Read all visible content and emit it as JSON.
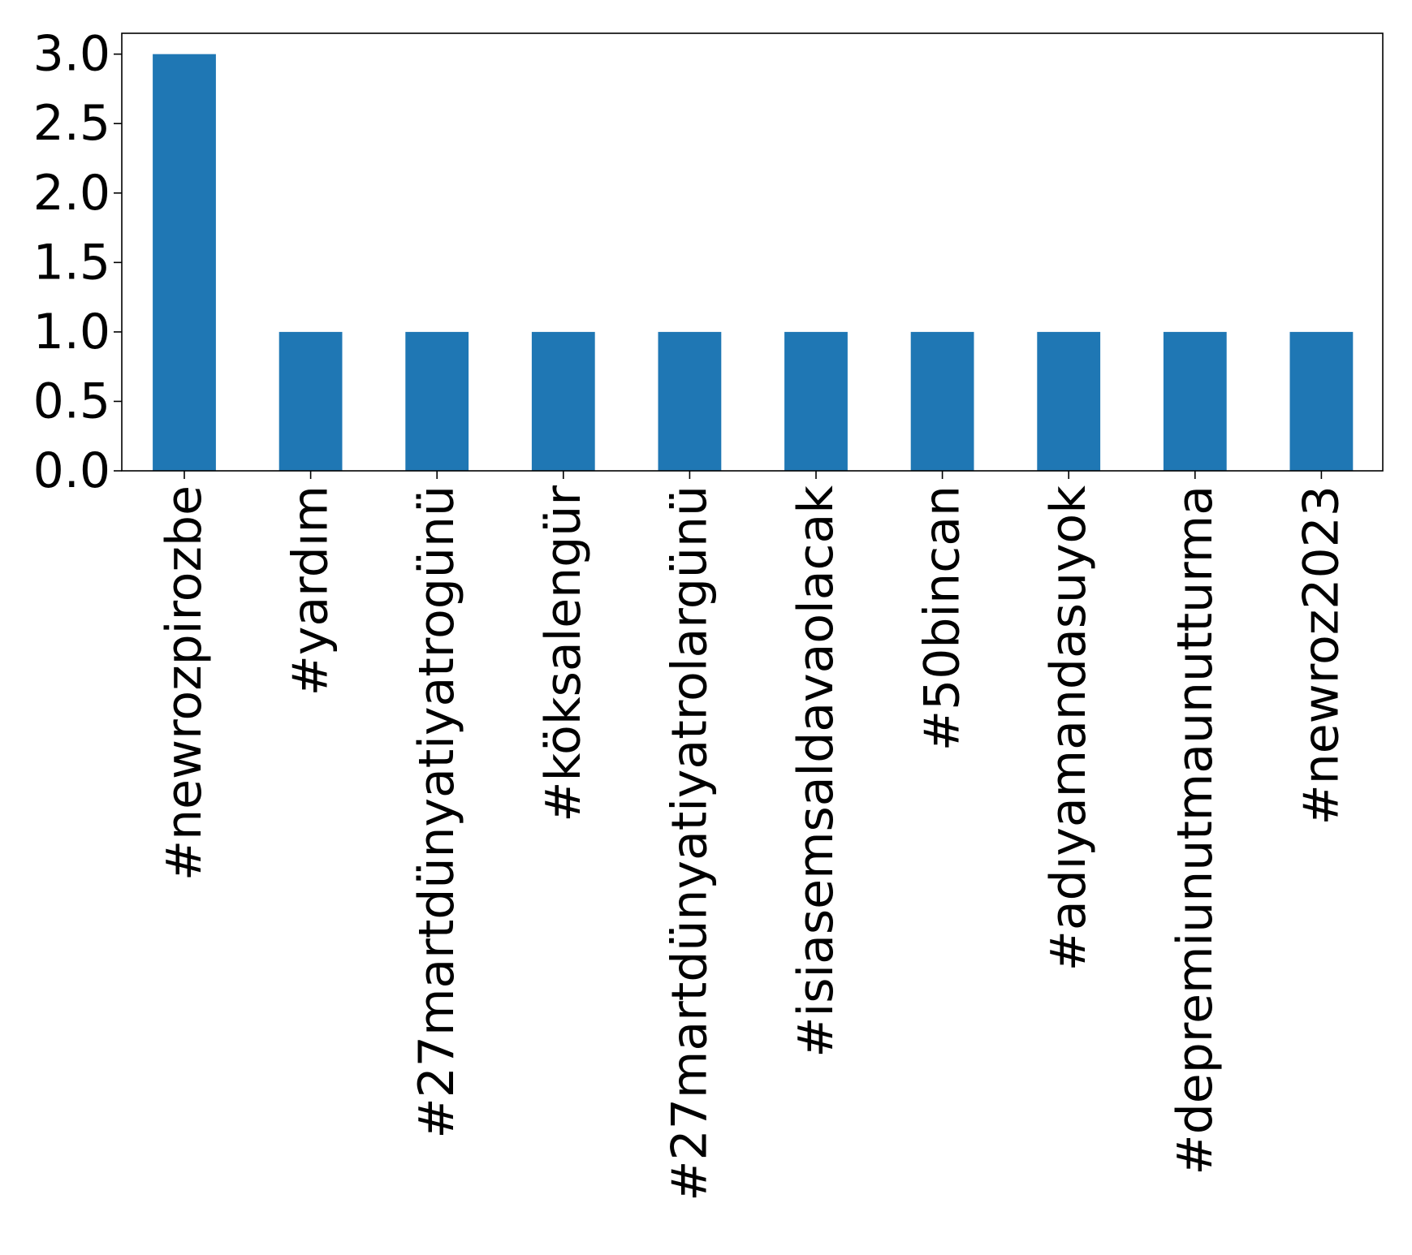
{
  "chart_data": {
    "type": "bar",
    "categories": [
      "#newrozpirozbe",
      "#yardım",
      "#27martdünyatiyatrogünü",
      "#köksalengür",
      "#27martdünyatiyatrolargünü",
      "#isiasemsaldavaolacak",
      "#50bincan",
      "#adıyamandasuyok",
      "#depremiunutmaunutturma",
      "#newroz2023"
    ],
    "values": [
      3,
      1,
      1,
      1,
      1,
      1,
      1,
      1,
      1,
      1
    ],
    "title": "",
    "xlabel": "",
    "ylabel": "",
    "ylim": [
      0,
      3.15
    ],
    "yticks": [
      "0.0",
      "0.5",
      "1.0",
      "1.5",
      "2.0",
      "2.5",
      "3.0"
    ],
    "bar_color": "#1f77b4",
    "grid": false,
    "legend": "none"
  }
}
